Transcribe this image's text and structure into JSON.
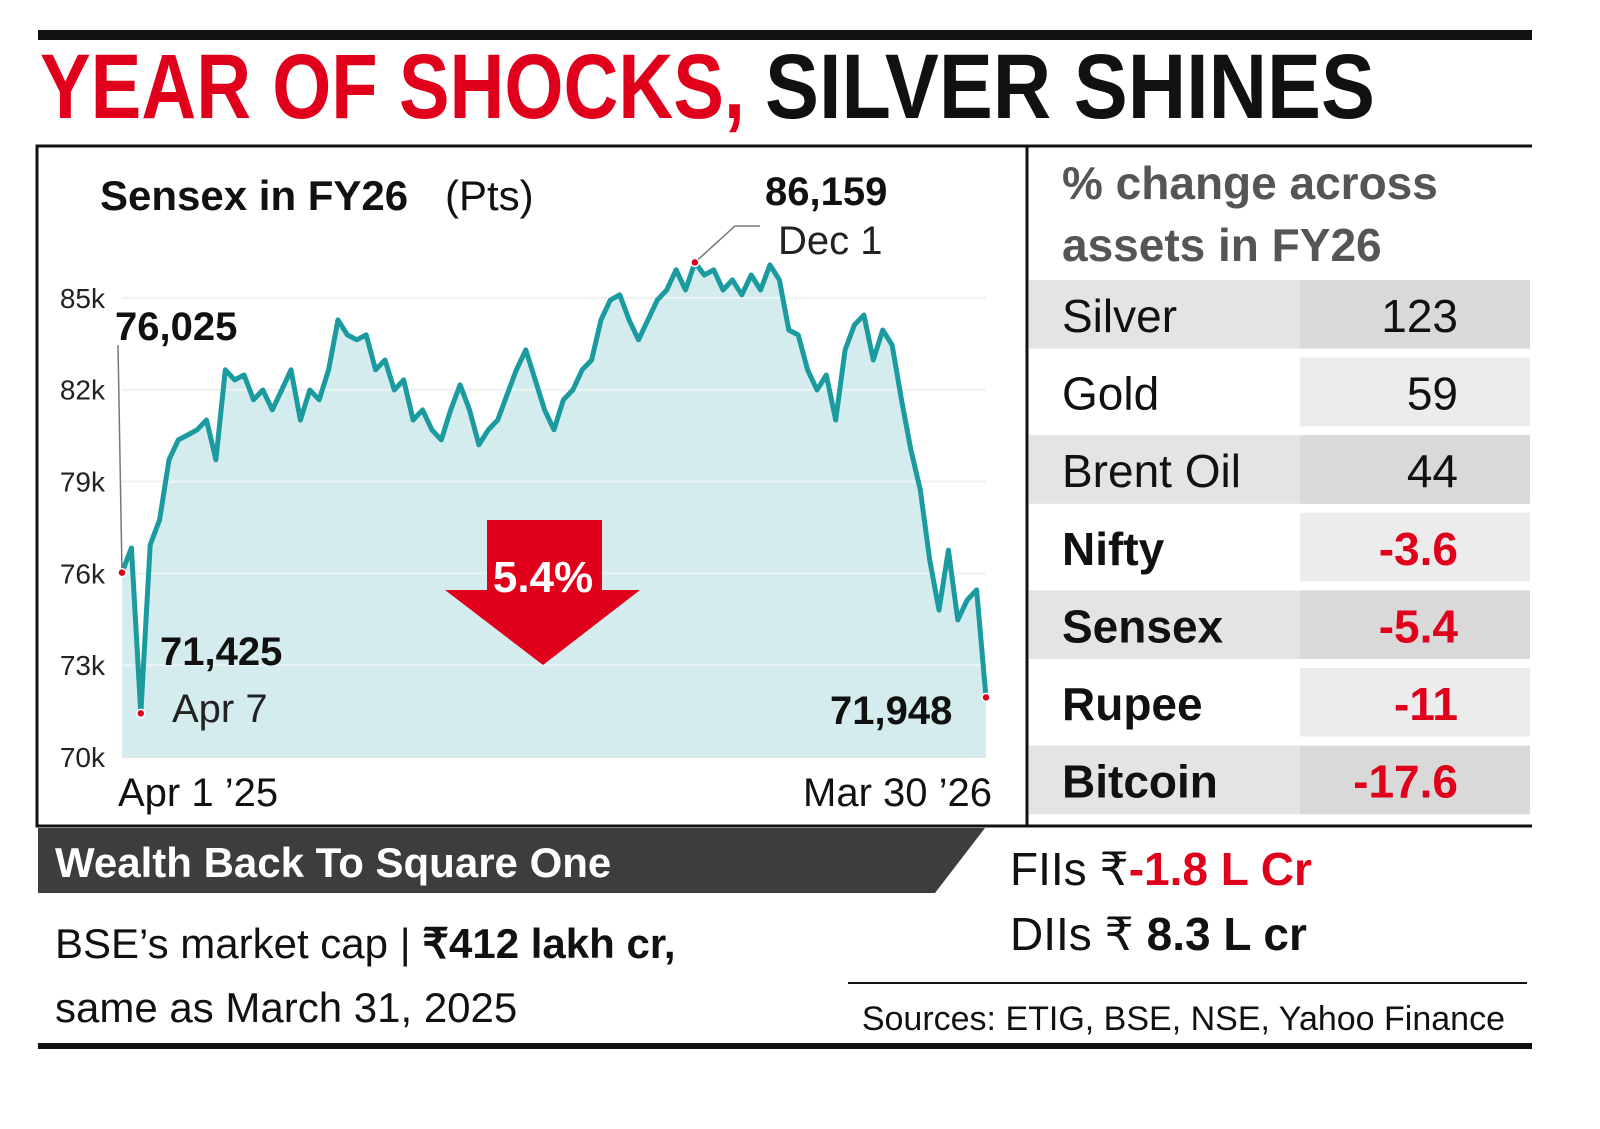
{
  "header": {
    "title_red": "YEAR OF SHOCKS,",
    "title_black": "SILVER SHINES"
  },
  "chart_data": {
    "type": "line",
    "title": "Sensex in FY26",
    "unit": "(Pts)",
    "categories": [
      "Apr 1 ’25",
      null,
      "Apr 7",
      null,
      null,
      null,
      null,
      null,
      null,
      null,
      null,
      null,
      null,
      null,
      null,
      null,
      null,
      null,
      null,
      null,
      null,
      null,
      null,
      null,
      null,
      null,
      null,
      null,
      null,
      null,
      null,
      null,
      null,
      null,
      null,
      null,
      null,
      null,
      null,
      null,
      null,
      null,
      null,
      null,
      null,
      null,
      null,
      null,
      null,
      null,
      null,
      null,
      null,
      null,
      null,
      null,
      null,
      null,
      null,
      null,
      null,
      "Dec 1",
      null,
      null,
      null,
      null,
      null,
      null,
      null,
      null,
      null,
      null,
      null,
      null,
      null,
      null,
      null,
      null,
      null,
      null,
      null,
      null,
      null,
      null,
      null,
      null,
      null,
      null,
      null,
      null,
      null,
      null,
      "Mar 30 ’26"
    ],
    "values": [
      76025,
      76830,
      71425,
      76930,
      77750,
      79710,
      80360,
      80520,
      80690,
      81010,
      79710,
      82650,
      82320,
      82480,
      81670,
      81990,
      81340,
      81990,
      82650,
      81010,
      81990,
      81670,
      82650,
      84280,
      83790,
      83630,
      83790,
      82650,
      82970,
      81990,
      82320,
      81010,
      81340,
      80690,
      80360,
      81340,
      82160,
      81340,
      80200,
      80690,
      81010,
      81830,
      82650,
      83300,
      82320,
      81340,
      80690,
      81670,
      81990,
      82650,
      82970,
      84280,
      84930,
      85100,
      84280,
      83630,
      84280,
      84930,
      85260,
      85920,
      85260,
      86159,
      85750,
      85920,
      85260,
      85590,
      85100,
      85750,
      85260,
      86080,
      85590,
      83950,
      83790,
      82650,
      81990,
      82480,
      81010,
      83300,
      84120,
      84440,
      82970,
      83950,
      83460,
      81670,
      80030,
      78730,
      76440,
      74800,
      76760,
      74480,
      75130,
      75460,
      71948
    ],
    "value_labels": [
      "76,025",
      null,
      "71,425",
      null,
      null,
      null,
      null,
      null,
      null,
      null,
      null,
      null,
      null,
      null,
      null,
      null,
      null,
      null,
      null,
      null,
      null,
      null,
      null,
      null,
      null,
      null,
      null,
      null,
      null,
      null,
      null,
      null,
      null,
      null,
      null,
      null,
      null,
      null,
      null,
      null,
      null,
      null,
      null,
      null,
      null,
      null,
      null,
      null,
      null,
      null,
      null,
      null,
      null,
      null,
      null,
      null,
      null,
      null,
      null,
      null,
      null,
      "86,159",
      null,
      null,
      null,
      null,
      null,
      null,
      null,
      null,
      null,
      null,
      null,
      null,
      null,
      null,
      null,
      null,
      null,
      null,
      null,
      null,
      null,
      null,
      null,
      null,
      null,
      null,
      null,
      null,
      null,
      null,
      "71,948"
    ],
    "color": "#1b9ba0",
    "fill": "#d4eced",
    "marker_color": "#d9001b",
    "ylim": [
      70000,
      86500
    ],
    "yticks": [
      {
        "value": 70000,
        "label": "70k"
      },
      {
        "value": 73000,
        "label": "73k"
      },
      {
        "value": 76000,
        "label": "76k"
      },
      {
        "value": 79000,
        "label": "79k"
      },
      {
        "value": 82000,
        "label": "82k"
      },
      {
        "value": 85000,
        "label": "85k"
      }
    ],
    "grid": true,
    "annotation": "5.4%"
  },
  "table": {
    "title": "% change across assets in FY26",
    "rows": [
      [
        "Silver",
        123
      ],
      [
        "Gold",
        59
      ],
      [
        "Brent Oil",
        44
      ],
      [
        "Nifty",
        -3.6
      ],
      [
        "Sensex",
        -5.4
      ],
      [
        "Rupee",
        -11
      ],
      [
        "Bitcoin",
        -17.6
      ]
    ]
  },
  "footer": {
    "banner": "Wealth Back To Square One",
    "line1": "BSE’s market cap | ",
    "line1_bold": "₹412 lakh cr,",
    "line2": "same as March 31, 2025",
    "fii_label": "FIIs ₹",
    "fii_value": "-1.8 L Cr",
    "dii_label": "DIIs ₹ ",
    "dii_value": "8.3 L cr",
    "sources": "Sources: ETIG, BSE, NSE, Yahoo Finance"
  }
}
